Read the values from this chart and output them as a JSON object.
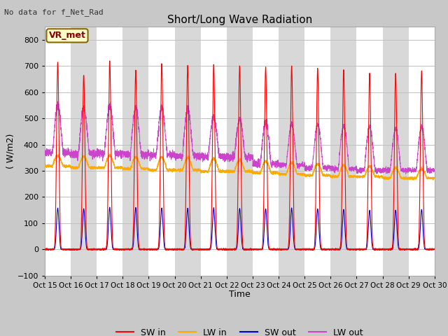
{
  "title": "Short/Long Wave Radiation",
  "xlabel": "Time",
  "ylabel": "( W/m2)",
  "ylim": [
    -100,
    850
  ],
  "yticks": [
    -100,
    0,
    100,
    200,
    300,
    400,
    500,
    600,
    700,
    800
  ],
  "xlim": [
    0,
    15
  ],
  "xtick_labels": [
    "Oct 15",
    "Oct 16",
    "Oct 17",
    "Oct 18",
    "Oct 19",
    "Oct 20",
    "Oct 21",
    "Oct 22",
    "Oct 23",
    "Oct 24",
    "Oct 25",
    "Oct 26",
    "Oct 27",
    "Oct 28",
    "Oct 29",
    "Oct 30"
  ],
  "text_no_data": "No data for f_Net_Rad",
  "box_label": "VR_met",
  "sw_in_color": "#ff0000",
  "lw_in_color": "#ffaa00",
  "sw_out_color": "#0000cc",
  "lw_out_color": "#cc44cc",
  "fig_bg_color": "#d8d8d8",
  "plot_bg_color": "#e8e8e8",
  "n_days": 15,
  "points_per_day": 288,
  "sw_in_peaks": [
    715,
    665,
    720,
    680,
    710,
    703,
    707,
    702,
    697,
    700,
    690,
    687,
    670,
    672,
    680
  ],
  "lw_in_base": [
    318,
    312,
    312,
    308,
    303,
    303,
    298,
    298,
    292,
    287,
    282,
    278,
    278,
    272,
    272
  ],
  "lw_in_peak": [
    358,
    355,
    358,
    352,
    352,
    350,
    347,
    342,
    337,
    332,
    327,
    322,
    317,
    312,
    308
  ],
  "sw_out_peak": [
    157,
    155,
    160,
    160,
    158,
    158,
    157,
    157,
    155,
    158,
    155,
    152,
    148,
    150,
    152
  ],
  "lw_out_base": [
    368,
    366,
    366,
    362,
    362,
    357,
    355,
    352,
    328,
    322,
    312,
    308,
    302,
    302,
    302
  ],
  "lw_out_peak": [
    548,
    542,
    548,
    542,
    542,
    537,
    507,
    497,
    487,
    477,
    477,
    472,
    467,
    462,
    467
  ]
}
